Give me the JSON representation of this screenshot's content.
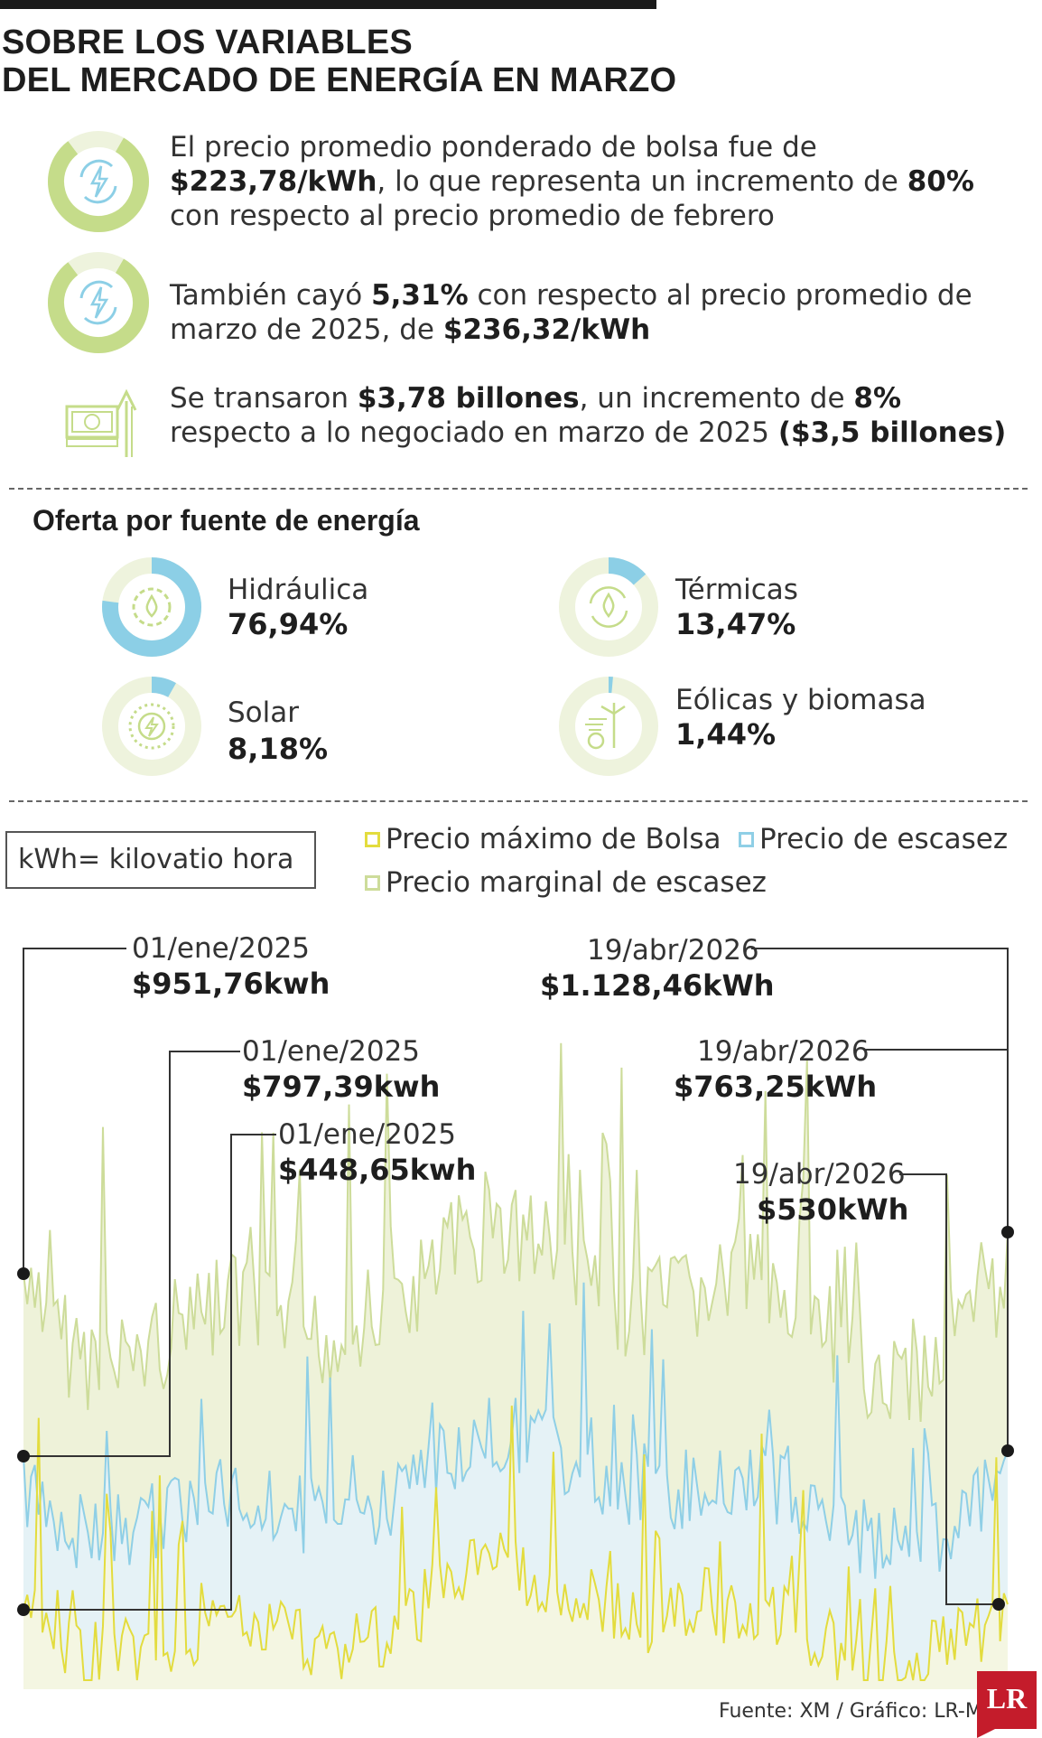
{
  "title_line1": "SOBRE LOS VARIABLES",
  "title_line2": "DEL MERCADO DE ENERGÍA EN MARZO",
  "facts": [
    {
      "parts": [
        "El precio promedio ponderado de bolsa fue de ",
        "$223,78/kWh",
        ", lo que representa un incremento de ",
        "80%",
        " con respecto al precio promedio de febrero"
      ],
      "icon": "energy-cycle-icon"
    },
    {
      "parts": [
        "También cayó ",
        "5,31%",
        " con respecto al precio promedio de marzo de 2025, de ",
        "$236,32/kWh",
        ""
      ],
      "icon": "energy-cycle-icon"
    },
    {
      "parts": [
        "Se transaron ",
        "$3,78 billones",
        ", un incremento de ",
        "8%",
        " respecto a lo negociado en marzo de 2025 ",
        "($3,5 billones)",
        ""
      ],
      "icon": "money-growth-icon"
    }
  ],
  "sources_title": "Oferta por fuente de energía",
  "sources": [
    {
      "label": "Hidráulica",
      "value": "76,94%",
      "share": 0.7694,
      "icon": "water-gear-icon"
    },
    {
      "label": "Térmicas",
      "value": "13,47%",
      "share": 0.1347,
      "icon": "thermal-drop-icon"
    },
    {
      "label": "Solar",
      "value": "8,18%",
      "share": 0.0818,
      "icon": "sun-icon"
    },
    {
      "label": "Eólicas y biomasa",
      "value": "1,44%",
      "share": 0.0144,
      "icon": "wind-biomass-icon"
    }
  ],
  "kwh_note": "kWh= kilovatio hora",
  "legend": [
    {
      "label": "Precio máximo de Bolsa",
      "color": "#e3dc3e"
    },
    {
      "label": "Precio de escasez",
      "color": "#8fcfe6"
    },
    {
      "label": "Precio marginal de escasez",
      "color": "#cddc9a"
    }
  ],
  "callouts_start": [
    {
      "date": "01/ene/2025",
      "value": "$951,76kwh"
    },
    {
      "date": "01/ene/2025",
      "value": "$797,39kwh"
    },
    {
      "date": "01/ene/2025",
      "value": "$448,65kwh"
    }
  ],
  "callouts_end": [
    {
      "date": "19/abr/2026",
      "value": "$1.128,46kWh"
    },
    {
      "date": "19/abr/2026",
      "value": "$763,25kWh"
    },
    {
      "date": "19/abr/2026",
      "value": "$530kWh"
    }
  ],
  "source_note": "Fuente: XM / Gráfico: LR-MB",
  "logo_text": "LR",
  "colors": {
    "ring_green": "#c5dc8a",
    "ring_light": "#eef3dd",
    "ring_blue": "#8ccfe6",
    "line_yellow": "#e3dc3e",
    "line_blue": "#8fcfe6",
    "line_green": "#cddc9a"
  },
  "chart_data": {
    "type": "line",
    "x_start": "01/ene/2025",
    "x_end": "19/abr/2026",
    "series": [
      {
        "name": "Precio marginal de escasez",
        "start": 951.76,
        "end": 1128.46
      },
      {
        "name": "Precio de escasez",
        "start": 797.39,
        "end": 763.25
      },
      {
        "name": "Precio máximo de Bolsa",
        "start": 448.65,
        "end": 530
      }
    ]
  }
}
